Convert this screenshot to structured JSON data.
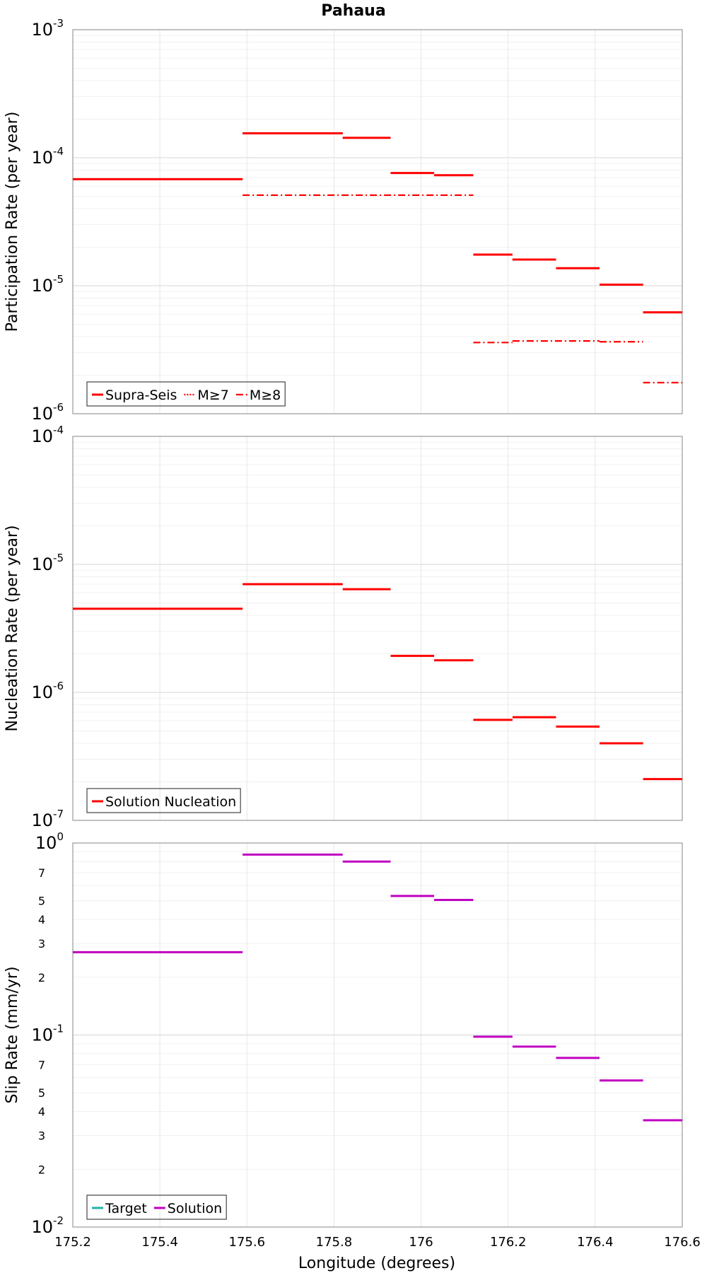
{
  "title": "Pahaua",
  "xlabel": "Longitude (degrees)",
  "colors": {
    "red": "#ff0000",
    "magenta": "#c000c0",
    "teal": "#20b2aa"
  },
  "chart_data": [
    {
      "type": "line",
      "ylabel": "Participation Rate (per year)",
      "yscale": "log",
      "ylim": [
        1e-06,
        0.001
      ],
      "xlim": [
        175.2,
        176.6
      ],
      "x_ticks": [
        "175.2",
        "175.4",
        "175.6",
        "175.8",
        "176",
        "176.2",
        "176.4",
        "176.6"
      ],
      "legend": {
        "position": "bottom-left",
        "entries": [
          "Supra-Seis",
          "M≥7",
          "M≥8"
        ]
      },
      "series": [
        {
          "name": "Supra-Seis",
          "style": "solid",
          "color": "#ff0000",
          "segments": [
            {
              "x": [
                175.2,
                175.59
              ],
              "y": 6.8e-05
            },
            {
              "x": [
                175.59,
                175.82
              ],
              "y": 0.000155
            },
            {
              "x": [
                175.82,
                175.93
              ],
              "y": 0.000143
            },
            {
              "x": [
                175.93,
                176.03
              ],
              "y": 7.6e-05
            },
            {
              "x": [
                176.03,
                176.12
              ],
              "y": 7.3e-05
            },
            {
              "x": [
                176.12,
                176.21
              ],
              "y": 1.75e-05
            },
            {
              "x": [
                176.21,
                176.31
              ],
              "y": 1.6e-05
            },
            {
              "x": [
                176.31,
                176.41
              ],
              "y": 1.37e-05
            },
            {
              "x": [
                176.41,
                176.51
              ],
              "y": 1.02e-05
            },
            {
              "x": [
                176.51,
                176.6
              ],
              "y": 6.2e-06
            }
          ]
        },
        {
          "name": "M≥7",
          "style": "dotted",
          "color": "#ff0000",
          "segments": [
            {
              "x": [
                175.2,
                175.59
              ],
              "y": 6.8e-05
            },
            {
              "x": [
                175.59,
                175.82
              ],
              "y": 0.000155
            },
            {
              "x": [
                175.82,
                175.93
              ],
              "y": 0.000143
            },
            {
              "x": [
                175.93,
                176.03
              ],
              "y": 7.6e-05
            },
            {
              "x": [
                176.03,
                176.12
              ],
              "y": 7.3e-05
            },
            {
              "x": [
                176.12,
                176.21
              ],
              "y": 1.75e-05
            },
            {
              "x": [
                176.21,
                176.31
              ],
              "y": 1.6e-05
            },
            {
              "x": [
                176.31,
                176.41
              ],
              "y": 1.37e-05
            },
            {
              "x": [
                176.41,
                176.51
              ],
              "y": 1.02e-05
            },
            {
              "x": [
                176.51,
                176.6
              ],
              "y": 6.2e-06
            }
          ]
        },
        {
          "name": "M≥8",
          "style": "dashdot",
          "color": "#ff0000",
          "segments": [
            {
              "x": [
                175.59,
                176.12
              ],
              "y": 5.1e-05
            },
            {
              "x": [
                176.12,
                176.21
              ],
              "y": 3.6e-06
            },
            {
              "x": [
                176.21,
                176.41
              ],
              "y": 3.7e-06
            },
            {
              "x": [
                176.41,
                176.51
              ],
              "y": 3.65e-06
            },
            {
              "x": [
                176.51,
                176.6
              ],
              "y": 1.75e-06
            }
          ]
        }
      ]
    },
    {
      "type": "line",
      "ylabel": "Nucleation Rate (per year)",
      "yscale": "log",
      "ylim": [
        1e-07,
        0.0001
      ],
      "xlim": [
        175.2,
        176.6
      ],
      "legend": {
        "position": "bottom-left",
        "entries": [
          "Solution Nucleation"
        ]
      },
      "series": [
        {
          "name": "Solution Nucleation",
          "style": "solid",
          "color": "#ff0000",
          "segments": [
            {
              "x": [
                175.2,
                175.59
              ],
              "y": 4.5e-06
            },
            {
              "x": [
                175.59,
                175.82
              ],
              "y": 7e-06
            },
            {
              "x": [
                175.82,
                175.93
              ],
              "y": 6.4e-06
            },
            {
              "x": [
                175.93,
                176.03
              ],
              "y": 1.93e-06
            },
            {
              "x": [
                176.03,
                176.12
              ],
              "y": 1.78e-06
            },
            {
              "x": [
                176.12,
                176.21
              ],
              "y": 6.1e-07
            },
            {
              "x": [
                176.21,
                176.31
              ],
              "y": 6.4e-07
            },
            {
              "x": [
                176.31,
                176.41
              ],
              "y": 5.4e-07
            },
            {
              "x": [
                176.41,
                176.51
              ],
              "y": 4e-07
            },
            {
              "x": [
                176.51,
                176.6
              ],
              "y": 2.1e-07
            }
          ]
        }
      ]
    },
    {
      "type": "line",
      "ylabel": "Slip Rate (mm/yr)",
      "yscale": "log",
      "ylim": [
        0.01,
        1
      ],
      "xlim": [
        175.2,
        176.6
      ],
      "mantissa_ticks": [
        {
          "v": 0.7,
          "label": "7"
        },
        {
          "v": 0.5,
          "label": "5"
        },
        {
          "v": 0.4,
          "label": "4"
        },
        {
          "v": 0.3,
          "label": "3"
        },
        {
          "v": 0.2,
          "label": "2"
        },
        {
          "v": 0.07,
          "label": "7"
        },
        {
          "v": 0.05,
          "label": "5"
        },
        {
          "v": 0.04,
          "label": "4"
        },
        {
          "v": 0.03,
          "label": "3"
        },
        {
          "v": 0.02,
          "label": "2"
        }
      ],
      "legend": {
        "position": "bottom-left",
        "entries": [
          "Target",
          "Solution"
        ]
      },
      "series": [
        {
          "name": "Target",
          "style": "solid",
          "color": "#20b2aa",
          "segments": []
        },
        {
          "name": "Solution",
          "style": "solid",
          "color": "#c000c0",
          "segments": [
            {
              "x": [
                175.2,
                175.59
              ],
              "y": 0.27
            },
            {
              "x": [
                175.59,
                175.82
              ],
              "y": 0.87
            },
            {
              "x": [
                175.82,
                175.93
              ],
              "y": 0.8
            },
            {
              "x": [
                175.93,
                176.03
              ],
              "y": 0.53
            },
            {
              "x": [
                176.03,
                176.12
              ],
              "y": 0.505
            },
            {
              "x": [
                176.12,
                176.21
              ],
              "y": 0.098
            },
            {
              "x": [
                176.21,
                176.31
              ],
              "y": 0.087
            },
            {
              "x": [
                176.31,
                176.41
              ],
              "y": 0.076
            },
            {
              "x": [
                176.41,
                176.51
              ],
              "y": 0.058
            },
            {
              "x": [
                176.51,
                176.6
              ],
              "y": 0.036
            }
          ]
        }
      ]
    }
  ]
}
